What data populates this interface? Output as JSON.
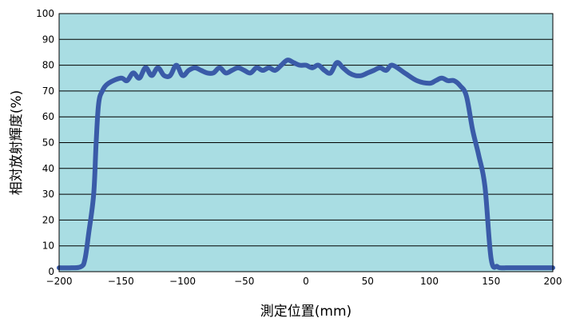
{
  "chart_data": {
    "type": "line",
    "title": "",
    "xlabel": "測定位置(mm)",
    "ylabel": "相対放射輝度(%)",
    "xlim": [
      -200,
      200
    ],
    "ylim": [
      0,
      100
    ],
    "xticks": [
      -200,
      -150,
      -100,
      -50,
      0,
      50,
      100,
      150,
      200
    ],
    "yticks": [
      0,
      10,
      20,
      30,
      40,
      50,
      60,
      70,
      80,
      90,
      100
    ],
    "xtick_labels": [
      "−200",
      "−150",
      "−100",
      "−50",
      "0",
      "50",
      "100",
      "150",
      "200"
    ],
    "ytick_labels": [
      "0",
      "10",
      "20",
      "30",
      "40",
      "50",
      "60",
      "70",
      "80",
      "90",
      "100"
    ],
    "grid": true,
    "legend": "none",
    "colors": {
      "plot_background": "#a9dde3",
      "line": "#3a5ba8",
      "grid": "#000000"
    },
    "series": [
      {
        "x": [
          -200,
          -190,
          -182,
          -179,
          -176,
          -172,
          -170,
          -168,
          -165,
          -160,
          -150,
          -145,
          -140,
          -135,
          -130,
          -125,
          -120,
          -115,
          -110,
          -105,
          -100,
          -95,
          -90,
          -85,
          -80,
          -75,
          -70,
          -65,
          -60,
          -55,
          -50,
          -45,
          -40,
          -35,
          -30,
          -25,
          -20,
          -15,
          -10,
          -5,
          0,
          5,
          10,
          15,
          20,
          25,
          30,
          35,
          40,
          45,
          50,
          55,
          60,
          65,
          70,
          80,
          90,
          100,
          105,
          110,
          115,
          120,
          125,
          130,
          135,
          140,
          145,
          150,
          155,
          158,
          162,
          165,
          168,
          170,
          175,
          185,
          200
        ],
        "y": [
          1.5,
          1.5,
          2,
          5,
          15,
          30,
          50,
          65,
          70,
          73,
          75,
          74,
          77,
          75,
          79,
          76,
          79,
          76,
          76,
          80,
          76,
          78,
          79,
          78,
          77,
          77,
          79,
          77,
          78,
          79,
          78,
          77,
          79,
          78,
          79,
          78,
          80,
          82,
          81,
          80,
          80,
          79,
          80,
          78,
          77,
          81,
          79,
          77,
          76,
          76,
          77,
          78,
          79,
          78,
          80,
          77,
          74,
          73,
          74,
          75,
          74,
          74,
          72,
          68,
          55,
          45,
          33,
          5,
          2,
          1.5,
          1.5,
          1.5,
          1.5,
          1.5,
          1.5,
          1.5,
          1.5
        ]
      }
    ]
  }
}
